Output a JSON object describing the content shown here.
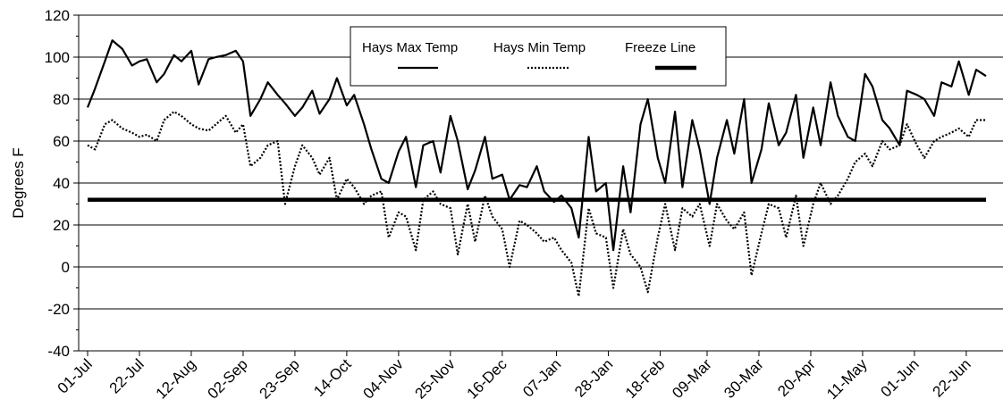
{
  "chart_data": {
    "type": "line",
    "title": "",
    "ylabel": "Degrees F",
    "xlabel": "",
    "ylim": [
      -40,
      120
    ],
    "y_ticks": [
      -40,
      -20,
      0,
      20,
      40,
      60,
      80,
      100,
      120
    ],
    "x_ticks": [
      "01-Jul",
      "22-Jul",
      "12-Aug",
      "02-Sep",
      "23-Sep",
      "14-Oct",
      "04-Nov",
      "25-Nov",
      "16-Dec",
      "07-Jan",
      "28-Jan",
      "18-Feb",
      "09-Mar",
      "30-Mar",
      "20-Apr",
      "11-May",
      "01-Jun",
      "22-Jun"
    ],
    "x_tick_day_offsets": [
      0,
      21,
      42,
      63,
      84,
      105,
      126,
      147,
      168,
      190,
      211,
      232,
      251,
      272,
      293,
      314,
      335,
      356
    ],
    "x_range_days": [
      0,
      364
    ],
    "grid": "horizontal",
    "legend_position": "top-center",
    "series": [
      {
        "name": "Hays Max Temp",
        "style": "solid",
        "color": "#000000",
        "x": [
          0,
          3,
          7,
          10,
          14,
          18,
          21,
          24,
          28,
          31,
          35,
          38,
          42,
          45,
          49,
          52,
          56,
          60,
          63,
          66,
          70,
          73,
          77,
          80,
          84,
          87,
          91,
          94,
          98,
          101,
          105,
          108,
          112,
          115,
          119,
          122,
          126,
          129,
          133,
          136,
          140,
          143,
          147,
          150,
          154,
          157,
          161,
          164,
          168,
          171,
          175,
          178,
          182,
          185,
          189,
          192,
          196,
          199,
          203,
          206,
          210,
          213,
          217,
          220,
          224,
          227,
          231,
          234,
          238,
          241,
          245,
          248,
          252,
          255,
          259,
          262,
          266,
          269,
          273,
          276,
          280,
          283,
          287,
          290,
          294,
          297,
          301,
          304,
          308,
          311,
          315,
          318,
          322,
          325,
          329,
          332,
          336,
          339,
          343,
          346,
          350,
          353,
          357,
          360,
          364
        ],
        "y": [
          76,
          85,
          98,
          108,
          104,
          96,
          98,
          99,
          88,
          92,
          101,
          98,
          103,
          87,
          99,
          100,
          101,
          103,
          98,
          72,
          80,
          88,
          82,
          78,
          72,
          76,
          84,
          73,
          80,
          90,
          77,
          82,
          68,
          56,
          42,
          40,
          55,
          62,
          38,
          58,
          60,
          45,
          72,
          60,
          37,
          46,
          62,
          42,
          44,
          32,
          39,
          38,
          48,
          36,
          31,
          34,
          28,
          14,
          62,
          36,
          40,
          8,
          48,
          26,
          68,
          80,
          52,
          40,
          74,
          38,
          70,
          56,
          30,
          52,
          70,
          54,
          80,
          40,
          56,
          78,
          58,
          64,
          82,
          52,
          76,
          58,
          88,
          72,
          62,
          60,
          92,
          86,
          70,
          66,
          58,
          84,
          82,
          80,
          72,
          88,
          86,
          98,
          82,
          94,
          91
        ]
      },
      {
        "name": "Hays Min Temp",
        "style": "dotted",
        "color": "#000000",
        "x": [
          0,
          3,
          7,
          10,
          14,
          18,
          21,
          24,
          28,
          31,
          35,
          38,
          42,
          45,
          49,
          52,
          56,
          60,
          63,
          66,
          70,
          73,
          77,
          80,
          84,
          87,
          91,
          94,
          98,
          101,
          105,
          108,
          112,
          115,
          119,
          122,
          126,
          129,
          133,
          136,
          140,
          143,
          147,
          150,
          154,
          157,
          161,
          164,
          168,
          171,
          175,
          178,
          182,
          185,
          189,
          192,
          196,
          199,
          203,
          206,
          210,
          213,
          217,
          220,
          224,
          227,
          231,
          234,
          238,
          241,
          245,
          248,
          252,
          255,
          259,
          262,
          266,
          269,
          273,
          276,
          280,
          283,
          287,
          290,
          294,
          297,
          301,
          304,
          308,
          311,
          315,
          318,
          322,
          325,
          329,
          332,
          336,
          339,
          343,
          346,
          350,
          353,
          357,
          360,
          364
        ],
        "y": [
          58,
          56,
          68,
          70,
          66,
          64,
          62,
          63,
          60,
          70,
          74,
          72,
          68,
          66,
          65,
          68,
          72,
          64,
          68,
          48,
          52,
          58,
          60,
          30,
          48,
          58,
          52,
          44,
          52,
          32,
          42,
          38,
          30,
          34,
          36,
          14,
          26,
          24,
          8,
          32,
          36,
          30,
          28,
          6,
          30,
          12,
          34,
          24,
          18,
          0,
          22,
          20,
          16,
          12,
          14,
          8,
          2,
          -14,
          28,
          16,
          14,
          -10,
          18,
          6,
          0,
          -12,
          14,
          30,
          8,
          28,
          24,
          30,
          10,
          30,
          22,
          18,
          26,
          -4,
          16,
          30,
          28,
          14,
          34,
          10,
          30,
          40,
          30,
          34,
          42,
          50,
          54,
          48,
          60,
          56,
          58,
          68,
          58,
          52,
          60,
          62,
          64,
          66,
          62,
          70,
          70
        ]
      },
      {
        "name": "Freeze Line",
        "style": "thick",
        "color": "#000000",
        "x": [
          0,
          364
        ],
        "y": [
          32,
          32
        ]
      }
    ]
  }
}
